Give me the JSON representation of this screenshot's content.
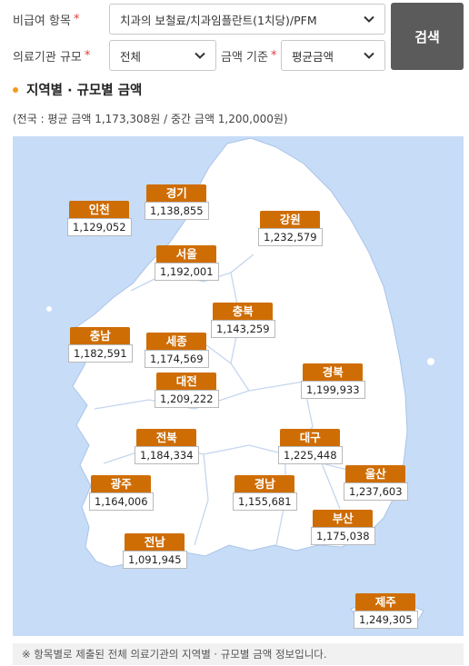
{
  "filters": {
    "item_label": "비급여 항목",
    "item_required": "*",
    "item_value": "치과의 보철료/치과임플란트(1치당)/PFM",
    "scale_label": "의료기관 규모",
    "scale_required": "*",
    "scale_value": "전체",
    "amount_label": "금액 기준",
    "amount_required": "*",
    "amount_value": "평균금액",
    "search_label": "검색"
  },
  "section": {
    "title": "지역별 · 규모별 금액",
    "summary": "(전국 : 평균 금액 1,173,308원 / 중간 금액 1,200,000원)"
  },
  "regions": {
    "gyeonggi": {
      "name": "경기",
      "value": "1,138,855"
    },
    "incheon": {
      "name": "인천",
      "value": "1,129,052"
    },
    "gangwon": {
      "name": "강원",
      "value": "1,232,579"
    },
    "seoul": {
      "name": "서울",
      "value": "1,192,001"
    },
    "chungbuk": {
      "name": "충북",
      "value": "1,143,259"
    },
    "chungnam": {
      "name": "충남",
      "value": "1,182,591"
    },
    "sejong": {
      "name": "세종",
      "value": "1,174,569"
    },
    "gyeongbuk": {
      "name": "경북",
      "value": "1,199,933"
    },
    "daejeon": {
      "name": "대전",
      "value": "1,209,222"
    },
    "jeonbuk": {
      "name": "전북",
      "value": "1,184,334"
    },
    "daegu": {
      "name": "대구",
      "value": "1,225,448"
    },
    "ulsan": {
      "name": "울산",
      "value": "1,237,603"
    },
    "gwangju": {
      "name": "광주",
      "value": "1,164,006"
    },
    "gyeongnam": {
      "name": "경남",
      "value": "1,155,681"
    },
    "busan": {
      "name": "부산",
      "value": "1,175,038"
    },
    "jeonnam": {
      "name": "전남",
      "value": "1,091,945"
    },
    "jeju": {
      "name": "제주",
      "value": "1,249,305"
    }
  },
  "colors": {
    "accent": "#cf6d05",
    "dot": "#f39b1a",
    "map_sea": "#c7dcf7",
    "map_land": "#ffffff",
    "button": "#5b5b5b"
  },
  "footnote": "※ 항목별로 제출된 전체 의료기관의 지역별 · 규모별 금액 정보입니다."
}
